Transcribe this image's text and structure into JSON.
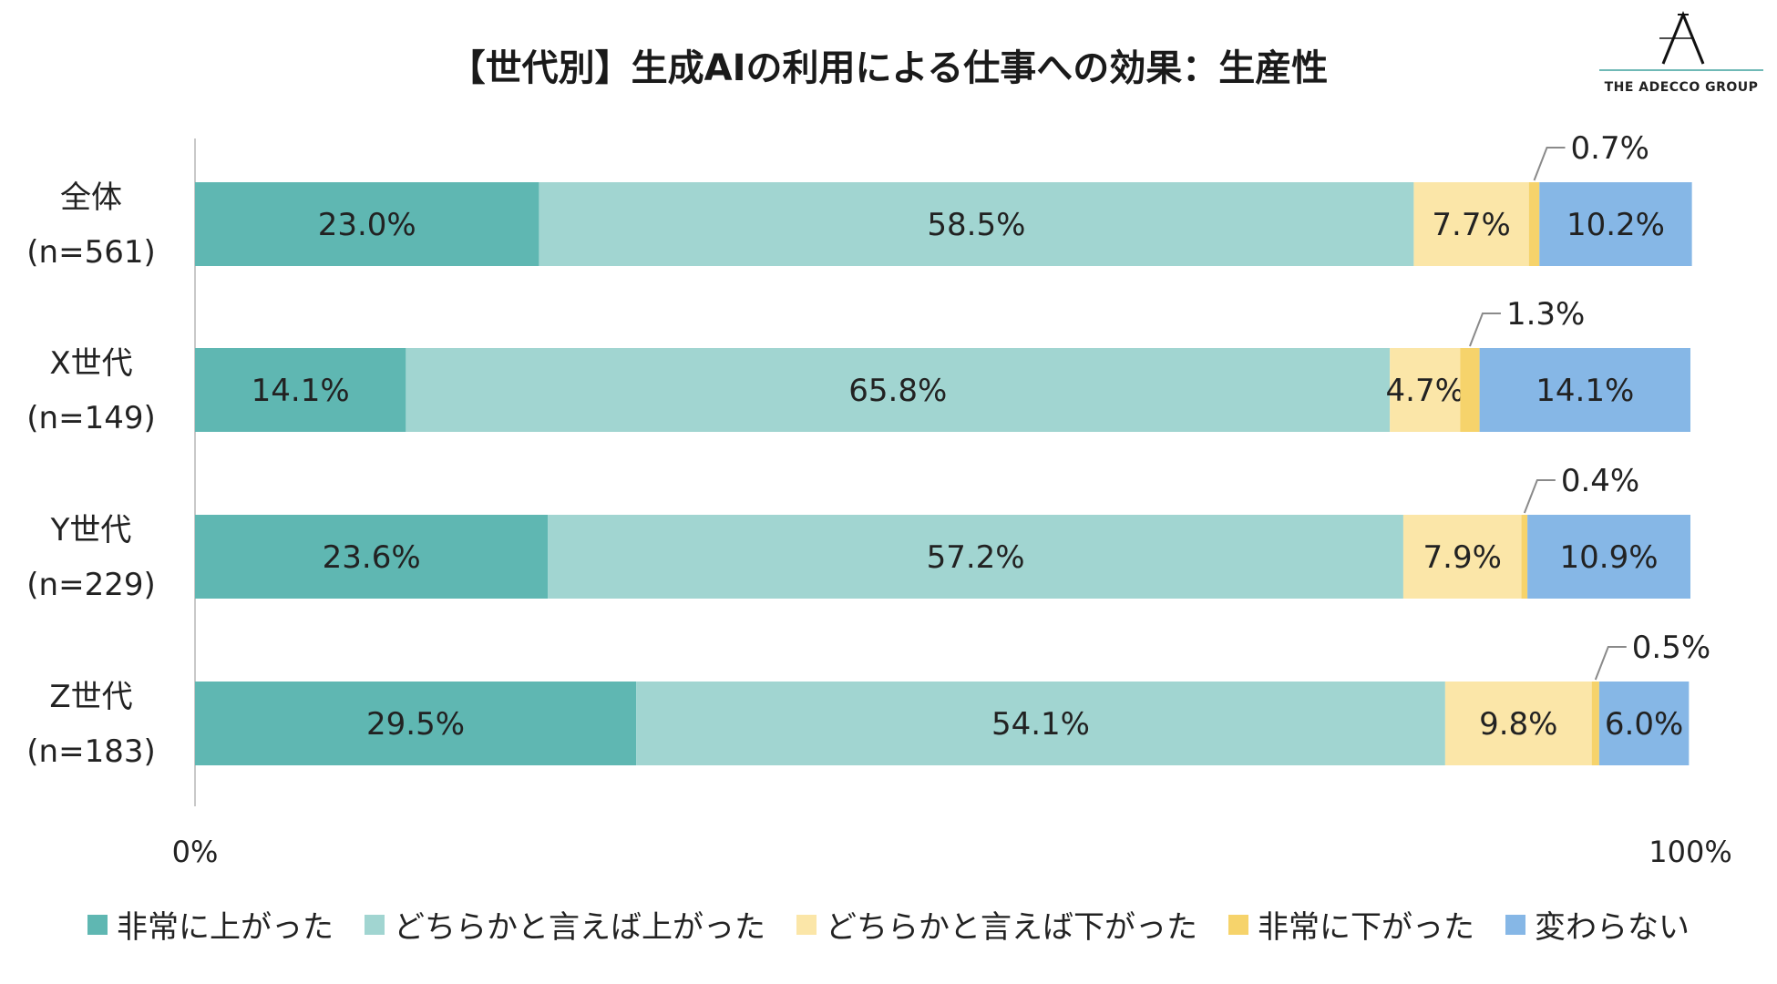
{
  "title": "【世代別】生成AIの利用による仕事への効果：生産性",
  "logo": {
    "text": "THE ADECCO GROUP",
    "mark": "A"
  },
  "chart_data": {
    "type": "stacked-bar-horizontal-100",
    "title": "【世代別】生成AIの利用による仕事への効果：生産性",
    "xlim": [
      0,
      100
    ],
    "x_tick_labels": [
      "0%",
      "100%"
    ],
    "legend_position": "bottom",
    "series_names": [
      "非常に上がった",
      "どちらかと言えば上がった",
      "どちらかと言えば下がった",
      "非常に下がった",
      "変わらない"
    ],
    "colors": [
      "#5fb7b2",
      "#a1d5d1",
      "#fbe6a8",
      "#f6d36b",
      "#86b7e6"
    ],
    "categories": [
      {
        "name": "全体",
        "n": "(n=561)",
        "values": [
          23.0,
          58.5,
          7.7,
          0.7,
          10.2
        ],
        "labels": [
          "23.0%",
          "58.5%",
          "7.7%",
          "0.7%",
          "10.2%"
        ]
      },
      {
        "name": "X世代",
        "n": "(n=149)",
        "values": [
          14.1,
          65.8,
          4.7,
          1.3,
          14.1
        ],
        "labels": [
          "14.1%",
          "65.8%",
          "4.7%",
          "1.3%",
          "14.1%"
        ]
      },
      {
        "name": "Y世代",
        "n": "(n=229)",
        "values": [
          23.6,
          57.2,
          7.9,
          0.4,
          10.9
        ],
        "labels": [
          "23.6%",
          "57.2%",
          "7.9%",
          "0.4%",
          "10.9%"
        ]
      },
      {
        "name": "Z世代",
        "n": "(n=183)",
        "values": [
          29.5,
          54.1,
          9.8,
          0.5,
          6.0
        ],
        "labels": [
          "29.5%",
          "54.1%",
          "9.8%",
          "0.5%",
          "6.0%"
        ]
      }
    ]
  }
}
